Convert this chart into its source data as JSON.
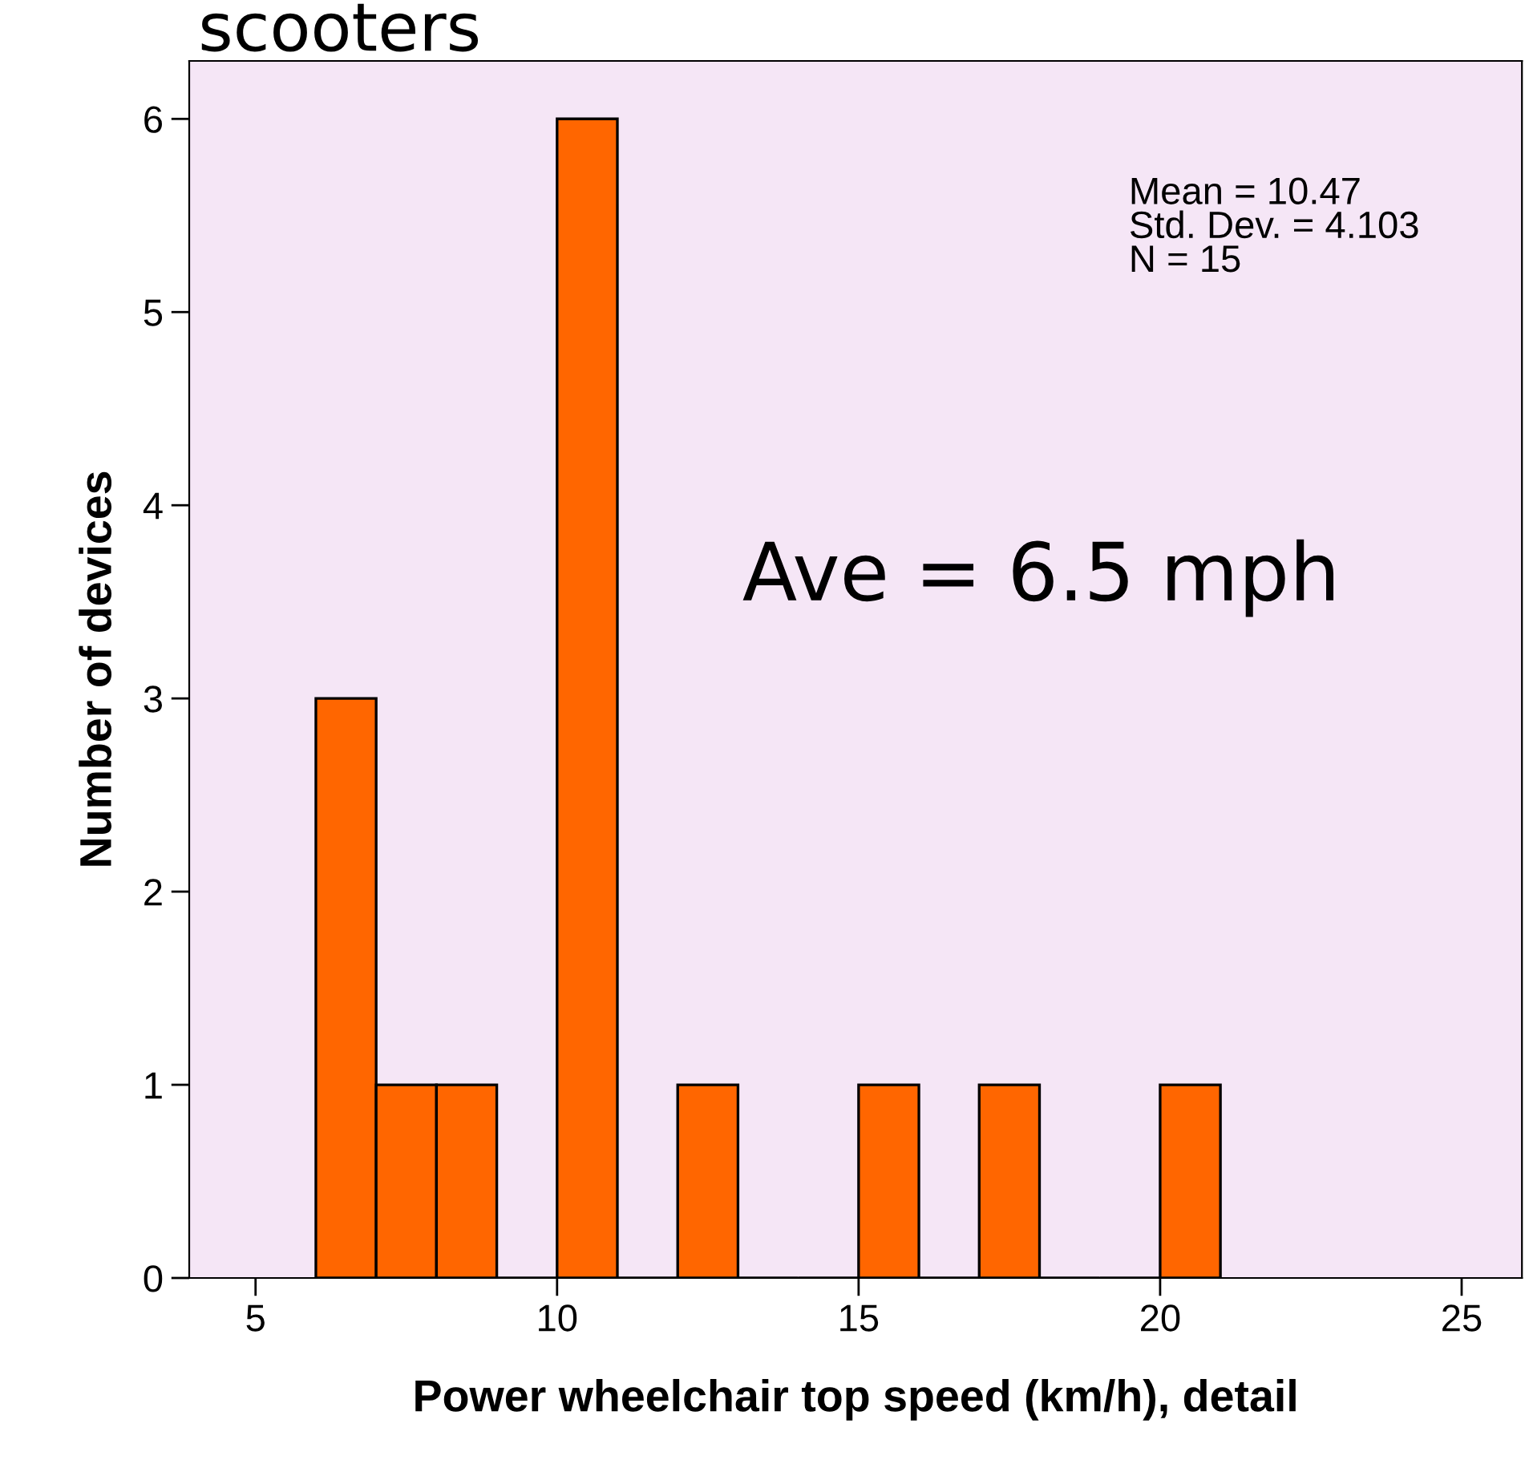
{
  "chart_data": {
    "type": "histogram",
    "title": "scooters",
    "xlabel": "Power wheelchair top speed (km/h), detail",
    "ylabel": "Number of devices",
    "bins": [
      6,
      7,
      8,
      9,
      10,
      11,
      12,
      13,
      14,
      15,
      16,
      17,
      18,
      19,
      20,
      21
    ],
    "values": [
      3,
      1,
      1,
      0,
      6,
      0,
      1,
      0,
      0,
      1,
      0,
      1,
      0,
      0,
      1
    ],
    "color": "#ff6600",
    "xlim": [
      3.9,
      26
    ],
    "xticks": [
      5,
      10,
      15,
      20,
      25
    ],
    "ylim": [
      0,
      6.3
    ],
    "yticks": [
      0,
      1,
      2,
      3,
      4,
      5,
      6
    ],
    "grid": false,
    "legend": false,
    "annotations": [
      "Mean = 10.47\nStd. Dev. = 4.103\nN = 15",
      "Ave = 6.5 mph"
    ]
  }
}
